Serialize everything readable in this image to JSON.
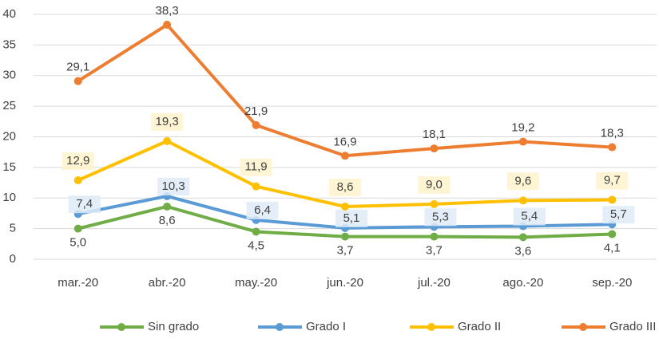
{
  "chart_data": {
    "type": "line",
    "categories": [
      "mar.-20",
      "abr.-20",
      "may.-20",
      "jun.-20",
      "jul.-20",
      "ago.-20",
      "sep.-20"
    ],
    "series": [
      {
        "name": "Sin grado",
        "color": "#70ad47",
        "values": [
          5.0,
          8.6,
          4.5,
          3.7,
          3.7,
          3.6,
          4.1
        ],
        "value_labels": [
          "5,0",
          "8,6",
          "4,5",
          "3,7",
          "3,7",
          "3,6",
          "4,1"
        ]
      },
      {
        "name": "Grado I",
        "color": "#5b9bd5",
        "values": [
          7.4,
          10.3,
          6.4,
          5.1,
          5.3,
          5.4,
          5.7
        ],
        "value_labels": [
          "7,4",
          "10,3",
          "6,4",
          "5,1",
          "5,3",
          "5,4",
          "5,7"
        ]
      },
      {
        "name": "Grado II",
        "color": "#ffc000",
        "values": [
          12.9,
          19.3,
          11.9,
          8.6,
          9.0,
          9.6,
          9.7
        ],
        "value_labels": [
          "12,9",
          "19,3",
          "11,9",
          "8,6",
          "9,0",
          "9,6",
          "9,7"
        ]
      },
      {
        "name": "Grado III",
        "color": "#ed7d31",
        "values": [
          29.1,
          38.3,
          21.9,
          16.9,
          18.1,
          19.2,
          18.3
        ],
        "value_labels": [
          "29,1",
          "38,3",
          "21,9",
          "16,9",
          "18,1",
          "19,2",
          "18,3"
        ]
      }
    ],
    "ylim": [
      0,
      40
    ],
    "yticks": [
      0,
      5,
      10,
      15,
      20,
      25,
      30,
      35,
      40
    ],
    "grid": true,
    "legend": "bottom"
  }
}
